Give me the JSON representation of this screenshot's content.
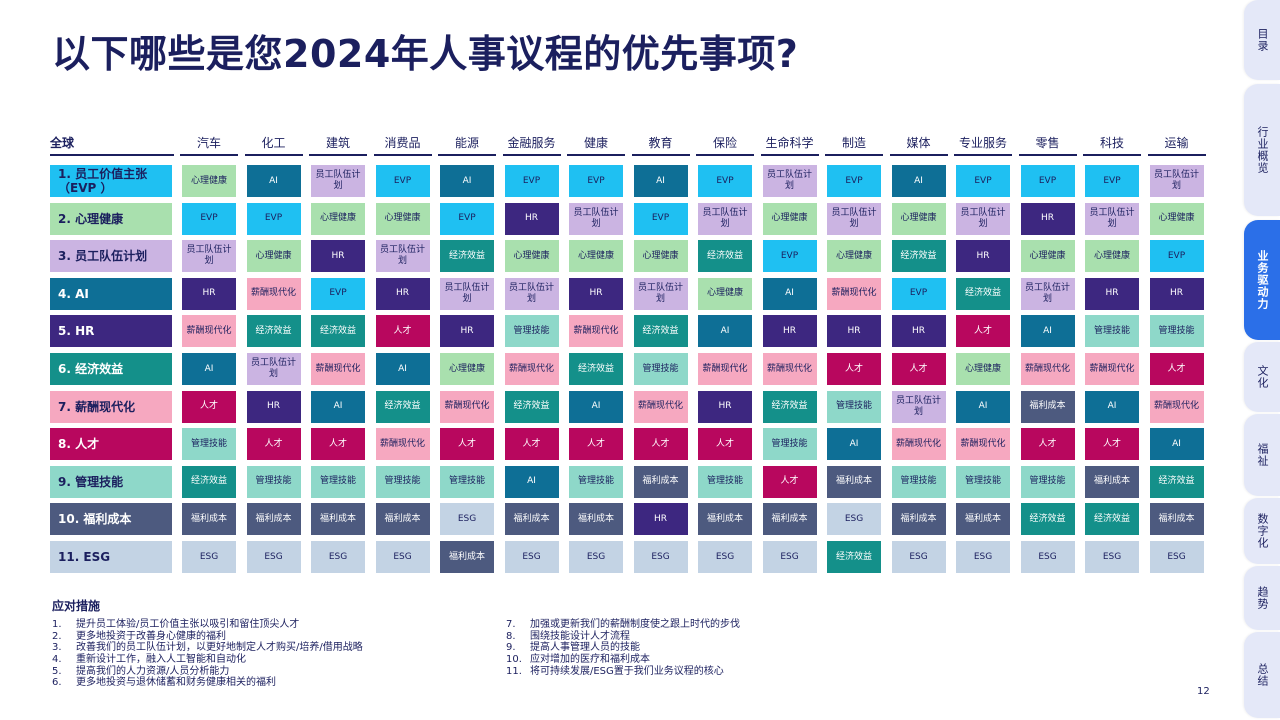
{
  "title": "以下哪些是您2024年人事议程的优先事项?",
  "global_label": "全球",
  "industries": [
    "汽车",
    "化工",
    "建筑",
    "消费品",
    "能源",
    "金融服务",
    "健康",
    "教育",
    "保险",
    "生命科学",
    "制造",
    "媒体",
    "专业服务",
    "零售",
    "科技",
    "运输"
  ],
  "priorities": [
    {
      "label": "1. 员工价值主张\n（EVP ）",
      "key": "EVP"
    },
    {
      "label": "2. 心理健康",
      "key": "心理健康"
    },
    {
      "label": "3. 员工队伍计划",
      "key": "员工队伍计划"
    },
    {
      "label": "4. AI",
      "key": "AI"
    },
    {
      "label": "5. HR",
      "key": "HR"
    },
    {
      "label": "6. 经济效益",
      "key": "经济效益"
    },
    {
      "label": "7. 薪酬现代化",
      "key": "薪酬现代化"
    },
    {
      "label": "8. 人才",
      "key": "人才"
    },
    {
      "label": "9. 管理技能",
      "key": "管理技能"
    },
    {
      "label": "10. 福利成本",
      "key": "福利成本"
    },
    {
      "label": "11. ESG",
      "key": "ESG"
    }
  ],
  "colors": {
    "EVP": {
      "bg": "#1fc0f2",
      "fg": "#1b1f5e"
    },
    "心理健康": {
      "bg": "#a9e0ae",
      "fg": "#1b1f5e"
    },
    "员工队伍计划": {
      "bg": "#cbb4e2",
      "fg": "#1b1f5e"
    },
    "AI": {
      "bg": "#0e6f96",
      "fg": "#ffffff"
    },
    "HR": {
      "bg": "#3d2780",
      "fg": "#ffffff"
    },
    "经济效益": {
      "bg": "#14908a",
      "fg": "#ffffff"
    },
    "薪酬现代化": {
      "bg": "#f6a8c0",
      "fg": "#1b1f5e"
    },
    "人才": {
      "bg": "#b8075e",
      "fg": "#ffffff"
    },
    "管理技能": {
      "bg": "#8ed8c9",
      "fg": "#1b1f5e"
    },
    "福利成本": {
      "bg": "#4d5a7f",
      "fg": "#ffffff"
    },
    "ESG": {
      "bg": "#c3d3e4",
      "fg": "#1b1f5e"
    }
  },
  "cell_labels": {
    "EVP": "EVP",
    "心理健康": "心理健康",
    "员工队伍计划": "员工队伍计划",
    "AI": "AI",
    "HR": "HR",
    "经济效益": "经济效益",
    "薪酬现代化": "薪酬现代化",
    "人才": "人才",
    "管理技能": "管理技能",
    "福利成本": "福利成本",
    "ESG": "ESG"
  },
  "matrix": [
    [
      "心理健康",
      "AI",
      "员工队伍计划",
      "EVP",
      "AI",
      "EVP",
      "EVP",
      "AI",
      "EVP",
      "员工队伍计划",
      "EVP",
      "AI",
      "EVP",
      "EVP",
      "EVP",
      "员工队伍计划"
    ],
    [
      "EVP",
      "EVP",
      "心理健康",
      "心理健康",
      "EVP",
      "HR",
      "员工队伍计划",
      "EVP",
      "员工队伍计划",
      "心理健康",
      "员工队伍计划",
      "心理健康",
      "员工队伍计划",
      "HR",
      "员工队伍计划",
      "心理健康"
    ],
    [
      "员工队伍计划",
      "心理健康",
      "HR",
      "员工队伍计划",
      "经济效益",
      "心理健康",
      "心理健康",
      "心理健康",
      "经济效益",
      "EVP",
      "心理健康",
      "经济效益",
      "HR",
      "心理健康",
      "心理健康",
      "EVP"
    ],
    [
      "HR",
      "薪酬现代化",
      "EVP",
      "HR",
      "员工队伍计划",
      "员工队伍计划",
      "HR",
      "员工队伍计划",
      "心理健康",
      "AI",
      "薪酬现代化",
      "EVP",
      "经济效益",
      "员工队伍计划",
      "HR",
      "HR"
    ],
    [
      "薪酬现代化",
      "经济效益",
      "经济效益",
      "人才",
      "HR",
      "管理技能",
      "薪酬现代化",
      "经济效益",
      "AI",
      "HR",
      "HR",
      "HR",
      "人才",
      "AI",
      "管理技能",
      "管理技能"
    ],
    [
      "AI",
      "员工队伍计划",
      "薪酬现代化",
      "AI",
      "心理健康",
      "薪酬现代化",
      "经济效益",
      "管理技能",
      "薪酬现代化",
      "薪酬现代化",
      "人才",
      "人才",
      "心理健康",
      "薪酬现代化",
      "薪酬现代化",
      "人才"
    ],
    [
      "人才",
      "HR",
      "AI",
      "经济效益",
      "薪酬现代化",
      "经济效益",
      "AI",
      "薪酬现代化",
      "HR",
      "经济效益",
      "管理技能",
      "员工队伍计划",
      "AI",
      "福利成本",
      "AI",
      "薪酬现代化"
    ],
    [
      "管理技能",
      "人才",
      "人才",
      "薪酬现代化",
      "人才",
      "人才",
      "人才",
      "人才",
      "人才",
      "管理技能",
      "AI",
      "薪酬现代化",
      "薪酬现代化",
      "人才",
      "人才",
      "AI"
    ],
    [
      "经济效益",
      "管理技能",
      "管理技能",
      "管理技能",
      "管理技能",
      "AI",
      "管理技能",
      "福利成本",
      "管理技能",
      "人才",
      "福利成本",
      "管理技能",
      "管理技能",
      "管理技能",
      "福利成本",
      "经济效益"
    ],
    [
      "福利成本",
      "福利成本",
      "福利成本",
      "福利成本",
      "ESG",
      "福利成本",
      "福利成本",
      "HR",
      "福利成本",
      "福利成本",
      "ESG",
      "福利成本",
      "福利成本",
      "经济效益",
      "经济效益",
      "福利成本"
    ],
    [
      "ESG",
      "ESG",
      "ESG",
      "ESG",
      "福利成本",
      "ESG",
      "ESG",
      "ESG",
      "ESG",
      "ESG",
      "经济效益",
      "ESG",
      "ESG",
      "ESG",
      "ESG",
      "ESG"
    ]
  ],
  "notes_title": "应对措施",
  "notes_left": [
    {
      "num": "1.",
      "text": "提升员工体验/员工价值主张以吸引和留住顶尖人才"
    },
    {
      "num": "2.",
      "text": "更多地投资于改善身心健康的福利"
    },
    {
      "num": "3.",
      "text": "改善我们的员工队伍计划，以更好地制定人才购买/培养/借用战略"
    },
    {
      "num": "4.",
      "text": "重新设计工作，融入人工智能和自动化"
    },
    {
      "num": "5.",
      "text": "提高我们的人力资源/人员分析能力"
    },
    {
      "num": "6.",
      "text": "更多地投资与退休储蓄和财务健康相关的福利"
    }
  ],
  "notes_right": [
    {
      "num": "7.",
      "text": "加强或更新我们的薪酬制度使之跟上时代的步伐"
    },
    {
      "num": "8.",
      "text": "围绕技能设计人才流程"
    },
    {
      "num": "9.",
      "text": "提高人事管理人员的技能"
    },
    {
      "num": "10.",
      "text": "应对增加的医疗和福利成本"
    },
    {
      "num": "11.",
      "text": "将可持续发展/ESG置于我们业务议程的核心"
    }
  ],
  "page_number": "12",
  "side_tabs": [
    {
      "label": "目录",
      "active": false
    },
    {
      "label": "行业概览",
      "active": false
    },
    {
      "label": "业务驱动力",
      "active": true
    },
    {
      "label": "文化",
      "active": false
    },
    {
      "label": "福祉",
      "active": false
    },
    {
      "label": "数字化",
      "active": false
    },
    {
      "label": "趋势",
      "active": false
    },
    {
      "label": "总结",
      "active": false
    }
  ]
}
